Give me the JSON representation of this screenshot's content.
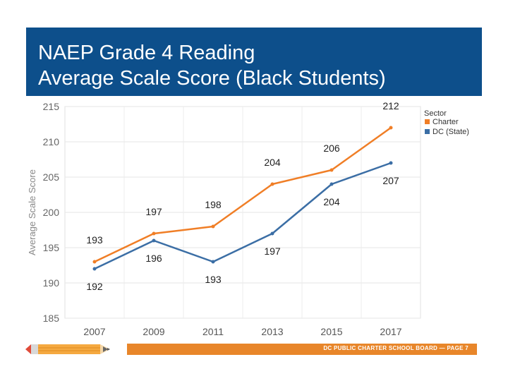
{
  "header": {
    "title_line1": "NAEP Grade 4 Reading",
    "title_line2": "Average Scale Score (Black Students)"
  },
  "footer": {
    "text": "DC PUBLIC CHARTER SCHOOL BOARD — PAGE 7"
  },
  "colors": {
    "title_bg": "#0d4f8b",
    "footer_bg": "#e8862a",
    "charter": "#f07e26",
    "dc_state": "#3b6ea5"
  },
  "icons": [
    "pencil-icon"
  ],
  "chart_data": {
    "type": "line",
    "x": [
      "2007",
      "2009",
      "2011",
      "2013",
      "2015",
      "2017"
    ],
    "ylabel": "Average Scale Score",
    "xlabel": "",
    "ylim": [
      185,
      215
    ],
    "yticks": [
      185,
      190,
      195,
      200,
      205,
      210,
      215
    ],
    "grid": true,
    "legend_title": "Sector",
    "legend_position": "top-right",
    "series": [
      {
        "name": "Charter",
        "color": "#f07e26",
        "values": [
          193,
          197,
          198,
          204,
          206,
          212
        ]
      },
      {
        "name": "DC (State)",
        "color": "#3b6ea5",
        "values": [
          192,
          196,
          193,
          197,
          204,
          207
        ]
      }
    ],
    "label_positions": {
      "Charter": [
        "above",
        "above",
        "above",
        "above",
        "above",
        "above"
      ],
      "DC (State)": [
        "below",
        "below",
        "below",
        "below",
        "below",
        "below"
      ]
    }
  }
}
